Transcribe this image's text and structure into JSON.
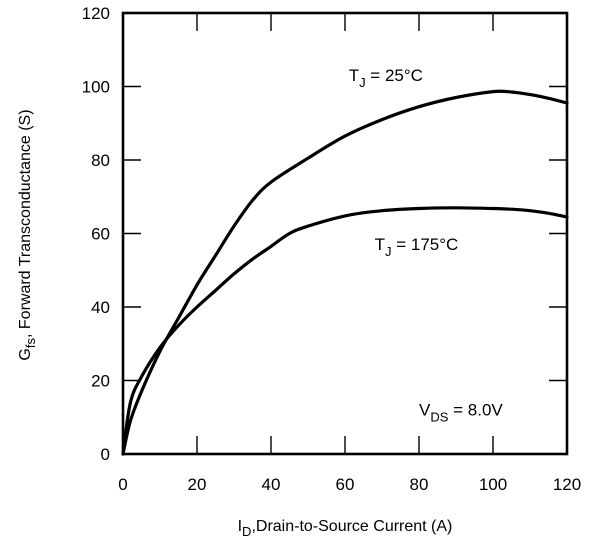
{
  "chart_data": {
    "type": "line",
    "title": "",
    "xlabel": {
      "main": "I",
      "sub": "D",
      "rest": ",Drain-to-Source Current (A)"
    },
    "ylabel": {
      "main": "G",
      "sub": "fs",
      "rest": ", Forward Transconductance (S)"
    },
    "xlim": [
      0,
      120
    ],
    "ylim": [
      0,
      120
    ],
    "xticks": [
      0,
      20,
      40,
      60,
      80,
      100,
      120
    ],
    "yticks": [
      0,
      20,
      40,
      60,
      80,
      100,
      120
    ],
    "grid": false,
    "series": [
      {
        "name": "TJ = 25°C",
        "x": [
          0,
          2,
          5,
          10,
          15,
          20,
          25,
          30,
          35,
          40,
          50,
          60,
          70,
          80,
          90,
          100,
          105,
          110,
          115,
          120
        ],
        "y": [
          0,
          9,
          17,
          28,
          37,
          46,
          54,
          62,
          69,
          74,
          80.5,
          86.5,
          91,
          94.5,
          97,
          98.6,
          98.5,
          97.8,
          96.8,
          95.5
        ]
      },
      {
        "name": "TJ = 175°C",
        "x": [
          0,
          2,
          5,
          10,
          15,
          20,
          25,
          30,
          35,
          40,
          45,
          50,
          60,
          70,
          80,
          90,
          100,
          105,
          110,
          115,
          120
        ],
        "y": [
          0,
          14,
          21,
          29,
          35,
          40,
          44.5,
          49,
          53,
          56.5,
          60,
          62,
          64.8,
          66.2,
          66.8,
          67,
          66.8,
          66.6,
          66.2,
          65.5,
          64.5
        ]
      }
    ],
    "annotations": [
      {
        "id": "tj25",
        "main": "T",
        "sub": "J",
        "rest": " = 25°C",
        "x": 61,
        "y": 101.5
      },
      {
        "id": "tj175",
        "main": "T",
        "sub": "J",
        "rest": " = 175°C",
        "x": 68,
        "y": 55.5
      },
      {
        "id": "vds",
        "main": "V",
        "sub": "DS",
        "rest": " = 8.0V",
        "x": 80,
        "y": 10.5
      }
    ]
  }
}
